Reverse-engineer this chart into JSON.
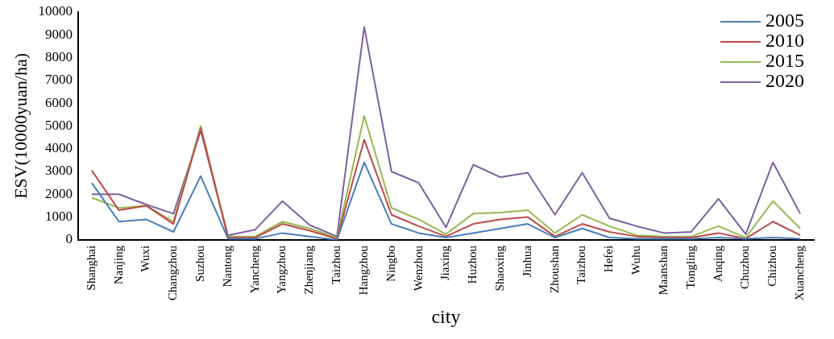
{
  "chart_data": {
    "type": "line",
    "xlabel": "city",
    "ylabel": "ESV(10000yuan/ha)",
    "categories": [
      "Shanghai",
      "Nanjing",
      "Wuxi",
      "Changzhou",
      "Suzhou",
      "Nantong",
      "Yancheng",
      "Yangzhou",
      "Zhenjiang",
      "Taizhou",
      "Hangzhou",
      "Ningbo",
      "Wenzhou",
      "Jiaxing",
      "Huzhou",
      "Shaoxing",
      "Jinhua",
      "Zhoushan",
      "Taizhou",
      "Hefei",
      "Wuhu",
      "Maanshan",
      "Tongling",
      "Anqing",
      "Chuzhou",
      "Chizhou",
      "Xuancheng"
    ],
    "series": [
      {
        "name": "2005",
        "color": "#4a7ebb",
        "values": [
          2500,
          800,
          900,
          350,
          2800,
          50,
          50,
          300,
          150,
          0,
          3400,
          700,
          300,
          100,
          300,
          500,
          700,
          100,
          500,
          100,
          50,
          50,
          50,
          100,
          50,
          100,
          50
        ]
      },
      {
        "name": "2010",
        "color": "#be4b48",
        "values": [
          3050,
          1300,
          1500,
          700,
          4900,
          100,
          100,
          700,
          400,
          50,
          4400,
          1100,
          600,
          150,
          700,
          900,
          1000,
          150,
          700,
          350,
          150,
          100,
          100,
          300,
          50,
          800,
          200
        ]
      },
      {
        "name": "2015",
        "color": "#98b954",
        "values": [
          1850,
          1400,
          1500,
          800,
          5000,
          150,
          150,
          800,
          500,
          100,
          5450,
          1400,
          900,
          250,
          1150,
          1200,
          1300,
          300,
          1100,
          600,
          200,
          150,
          150,
          600,
          100,
          1700,
          500
        ]
      },
      {
        "name": "2020",
        "color": "#7d60a0",
        "values": [
          2000,
          2000,
          1550,
          1150,
          4800,
          200,
          450,
          1700,
          650,
          150,
          9350,
          3000,
          2500,
          550,
          3300,
          2750,
          2950,
          1100,
          2950,
          950,
          600,
          300,
          350,
          1800,
          250,
          3400,
          1150
        ]
      }
    ],
    "ylim": [
      0,
      10000
    ],
    "yticks": [
      0,
      1000,
      2000,
      3000,
      4000,
      5000,
      6000,
      7000,
      8000,
      9000,
      10000
    ],
    "grid": false,
    "legend": "top right",
    "marker": "none",
    "line_style": "solid"
  }
}
